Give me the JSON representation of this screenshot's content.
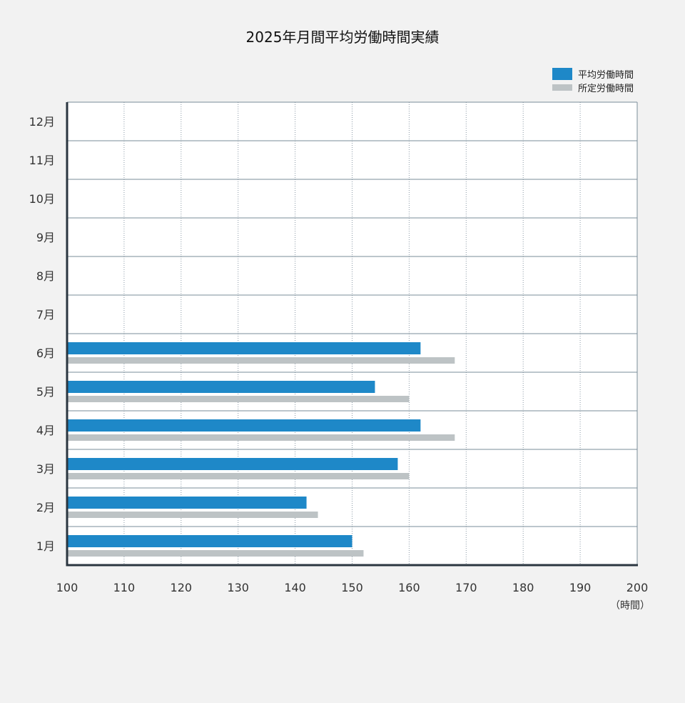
{
  "chart_data": {
    "type": "bar",
    "orientation": "horizontal",
    "title": "2025年月間平均労働時間実績",
    "xunit": "（時間）",
    "xlim": [
      100,
      200
    ],
    "xticks": [
      100,
      110,
      120,
      130,
      140,
      150,
      160,
      170,
      180,
      190,
      200
    ],
    "grid": true,
    "legend_position": "top-right",
    "categories": [
      "1月",
      "2月",
      "3月",
      "4月",
      "5月",
      "6月",
      "7月",
      "8月",
      "9月",
      "10月",
      "11月",
      "12月"
    ],
    "series": [
      {
        "name": "平均労働時間",
        "color": "#1e88c8",
        "values": [
          150,
          142,
          158,
          162,
          154,
          162,
          null,
          null,
          null,
          null,
          null,
          null
        ]
      },
      {
        "name": "所定労働時間",
        "color": "#bdc3c5",
        "values": [
          152,
          144,
          160,
          168,
          160,
          168,
          null,
          null,
          null,
          null,
          null,
          null
        ]
      }
    ]
  }
}
